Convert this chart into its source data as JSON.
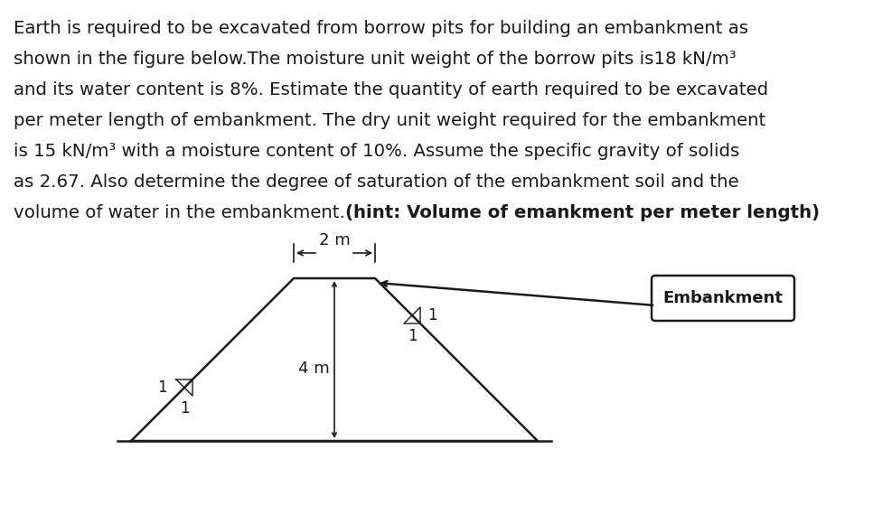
{
  "line1": "Earth is required to be excavated from borrow pits for building an embankment as",
  "line2": "shown in the figure below.The moisture unit weight of the borrow pits is18 kN/m³",
  "line3": "and its water content is 8%. Estimate the quantity of earth required to be excavated",
  "line4": "per meter length of embankment. The dry unit weight required for the embankment",
  "line5": "is 15 kN/m³ with a moisture content of 10%. Assume the specific gravity of solids",
  "line6": "as 2.67. Also determine the degree of saturation of the embankment soil and the",
  "line7_normal": "volume of water in the embankment.",
  "line7_bold": "(hint: Volume of emankment per meter length)",
  "dim_top_label": "2 m",
  "dim_height_label": "4 m",
  "slope_label": "1",
  "label_embankment": "Embankment",
  "bg_color": "#ffffff",
  "line_color": "#1a1a1a",
  "text_color": "#1a1a1a",
  "font_size_text": 14.2,
  "font_size_diagram": 13
}
